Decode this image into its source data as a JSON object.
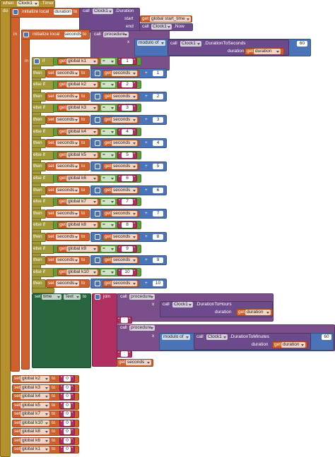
{
  "event": {
    "when": "when",
    "component": "Clock1",
    "name": ".Timer",
    "do": "do"
  },
  "labels": {
    "initialize_local": "initialize local",
    "to": "to",
    "in": "in",
    "call": "call",
    "get": "get",
    "set": "set",
    "then": "then",
    "else_if": "else if",
    "if": "if",
    "eq": "=",
    "plus": "+",
    "quote": "\"",
    "join": "join"
  },
  "init_duration": {
    "name": "duration",
    "component": "Clock1",
    "method": ".Duration",
    "start_label": "start",
    "start_var": "global start_time",
    "end_label": "end",
    "end_component": "Clock1",
    "end_method": ".Now"
  },
  "init_seconds": {
    "name": "seconds",
    "procedure": "procedure",
    "arg": "x",
    "modulo": "modulo of",
    "component": "Clock1",
    "method": ".DurationToSeconds",
    "param": "duration",
    "param_var": "duration",
    "divisor": "60"
  },
  "conditions": [
    {
      "var": "global k1",
      "value": "1",
      "increment": "1"
    },
    {
      "var": "global k2",
      "value": "2",
      "increment": "2"
    },
    {
      "var": "global k3",
      "value": "3",
      "increment": "3"
    },
    {
      "var": "global k4",
      "value": "4",
      "increment": "4"
    },
    {
      "var": "global k5",
      "value": "5",
      "increment": "5"
    },
    {
      "var": "global k6",
      "value": "6",
      "increment": "6"
    },
    {
      "var": "global k7",
      "value": "7",
      "increment": "7"
    },
    {
      "var": "global k8",
      "value": "8",
      "increment": "8"
    },
    {
      "var": "global k9",
      "value": "9",
      "increment": "9"
    },
    {
      "var": "global k10",
      "value": "10",
      "increment": "10"
    }
  ],
  "set_text": {
    "component": "time",
    "property": "Text",
    "join": "join",
    "hours": {
      "procedure": "procedure",
      "arg": "x",
      "component": "Clock1",
      "method": ".DurationToHours",
      "param": "duration",
      "var": "duration"
    },
    "sep1": ":",
    "minutes": {
      "procedure": "procedure",
      "arg": "x",
      "modulo": "modulo of",
      "component": "Clock1",
      "method": ".DurationToMinutes",
      "param": "duration",
      "var": "duration",
      "divisor": "60"
    },
    "sep2": ":",
    "seconds_var": "seconds"
  },
  "resets": [
    {
      "var": "global k2",
      "value": "0"
    },
    {
      "var": "global k3",
      "value": "0"
    },
    {
      "var": "global k4",
      "value": "0"
    },
    {
      "var": "global k5",
      "value": "0"
    },
    {
      "var": "global k7",
      "value": "0"
    },
    {
      "var": "global k10",
      "value": "0"
    },
    {
      "var": "global k8",
      "value": "0"
    },
    {
      "var": "global k6",
      "value": "0"
    },
    {
      "var": "global k1",
      "value": "0"
    }
  ]
}
